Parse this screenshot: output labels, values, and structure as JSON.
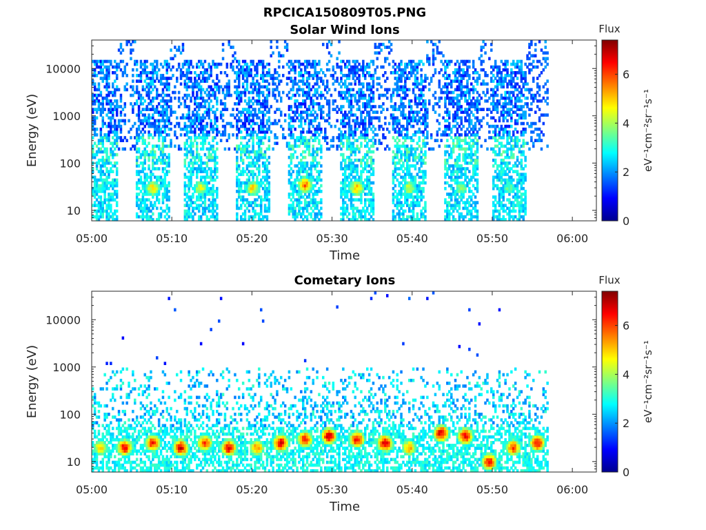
{
  "figure_title": "RPCICA150809T05.PNG",
  "colorbar": {
    "label": "Flux",
    "units_label": "eV⁻¹cm⁻²sr⁻¹s⁻¹",
    "ticks": [
      "0",
      "2",
      "4",
      "6"
    ],
    "range": [
      0,
      7.4
    ],
    "colormap": "jet"
  },
  "chart_data": [
    {
      "type": "heatmap",
      "title": "Solar Wind Ions",
      "xlabel": "Time",
      "ylabel": "Energy (eV)",
      "x_ticks": [
        "05:00",
        "05:10",
        "05:20",
        "05:30",
        "05:40",
        "05:50",
        "06:00"
      ],
      "y_ticks": [
        "10",
        "100",
        "1000",
        "10000"
      ],
      "yscale": "log",
      "xlim": [
        "05:00",
        "06:03"
      ],
      "ylim": [
        6,
        40000
      ],
      "data_end": "05:57",
      "sweeps": [
        {
          "time": "05:01",
          "peak_energy": 30,
          "peak_flux": 3.6
        },
        {
          "time": "05:07.5",
          "peak_energy": 30,
          "peak_flux": 5.3
        },
        {
          "time": "05:13.5",
          "peak_energy": 30,
          "peak_flux": 5.0
        },
        {
          "time": "05:20",
          "peak_energy": 30,
          "peak_flux": 5.4
        },
        {
          "time": "05:26.5",
          "peak_energy": 35,
          "peak_flux": 6.2
        },
        {
          "time": "05:33",
          "peak_energy": 30,
          "peak_flux": 5.8
        },
        {
          "time": "05:39.5",
          "peak_energy": 30,
          "peak_flux": 4.8
        },
        {
          "time": "05:46",
          "peak_energy": 30,
          "peak_flux": 4.4
        },
        {
          "time": "05:52",
          "peak_energy": 30,
          "peak_flux": 4.0
        }
      ]
    },
    {
      "type": "heatmap",
      "title": "Cometary Ions",
      "xlabel": "Time",
      "ylabel": "Energy (eV)",
      "x_ticks": [
        "05:00",
        "05:10",
        "05:20",
        "05:30",
        "05:40",
        "05:50",
        "06:00"
      ],
      "y_ticks": [
        "10",
        "100",
        "1000",
        "10000"
      ],
      "yscale": "log",
      "xlim": [
        "05:00",
        "06:03"
      ],
      "ylim": [
        6,
        40000
      ],
      "data_end": "05:57",
      "sweeps": [
        {
          "time": "05:01",
          "peak_energy": 20,
          "peak_flux": 5.5
        },
        {
          "time": "05:04",
          "peak_energy": 20,
          "peak_flux": 7.0
        },
        {
          "time": "05:07.5",
          "peak_energy": 25,
          "peak_flux": 6.8
        },
        {
          "time": "05:11",
          "peak_energy": 20,
          "peak_flux": 7.2
        },
        {
          "time": "05:14",
          "peak_energy": 25,
          "peak_flux": 6.5
        },
        {
          "time": "05:17",
          "peak_energy": 20,
          "peak_flux": 7.2
        },
        {
          "time": "05:20.5",
          "peak_energy": 20,
          "peak_flux": 6.0
        },
        {
          "time": "05:23.5",
          "peak_energy": 25,
          "peak_flux": 7.3
        },
        {
          "time": "05:26.5",
          "peak_energy": 30,
          "peak_flux": 6.8
        },
        {
          "time": "05:29.5",
          "peak_energy": 35,
          "peak_flux": 7.3
        },
        {
          "time": "05:33",
          "peak_energy": 30,
          "peak_flux": 7.0
        },
        {
          "time": "05:36.5",
          "peak_energy": 25,
          "peak_flux": 7.3
        },
        {
          "time": "05:39.5",
          "peak_energy": 20,
          "peak_flux": 5.8
        },
        {
          "time": "05:43.5",
          "peak_energy": 40,
          "peak_flux": 7.3
        },
        {
          "time": "05:46.5",
          "peak_energy": 35,
          "peak_flux": 7.0
        },
        {
          "time": "05:49.5",
          "peak_energy": 10,
          "peak_flux": 7.0
        },
        {
          "time": "05:52.5",
          "peak_energy": 20,
          "peak_flux": 6.5
        },
        {
          "time": "05:55.5",
          "peak_energy": 25,
          "peak_flux": 7.0
        }
      ]
    }
  ]
}
